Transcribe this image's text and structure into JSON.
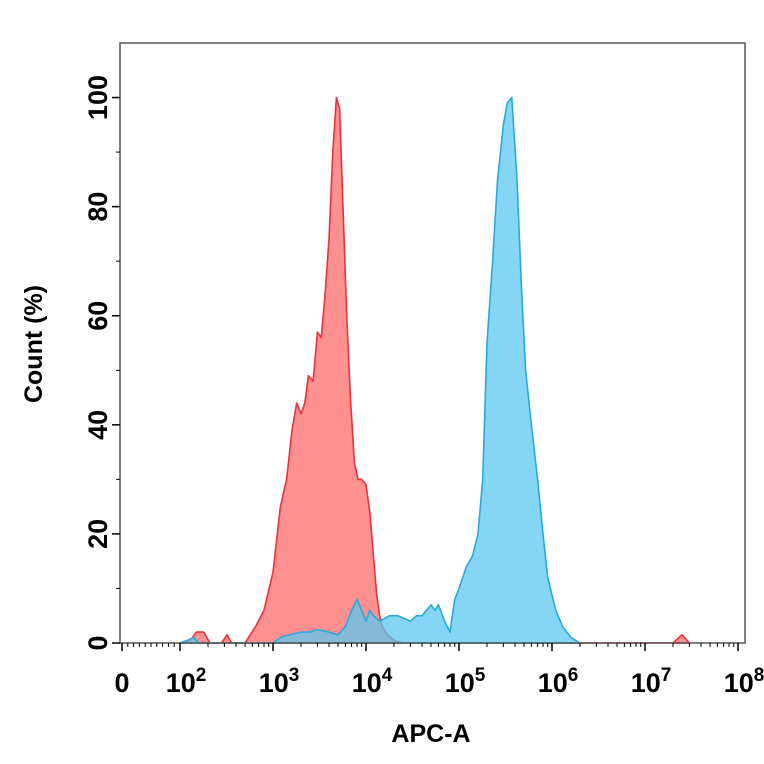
{
  "chart_data": {
    "type": "area",
    "xlabel": "APC-A",
    "ylabel": "Count  (%)",
    "x_scale": "log",
    "xlim": [
      0,
      100000000
    ],
    "ylim": [
      0,
      110
    ],
    "x_ticks": [
      {
        "base": "0",
        "exp": ""
      },
      {
        "base": "10",
        "exp": "2"
      },
      {
        "base": "10",
        "exp": "3"
      },
      {
        "base": "10",
        "exp": "4"
      },
      {
        "base": "10",
        "exp": "5"
      },
      {
        "base": "10",
        "exp": "6"
      },
      {
        "base": "10",
        "exp": "7"
      },
      {
        "base": "10",
        "exp": "8"
      }
    ],
    "y_ticks": [
      "0",
      "20",
      "40",
      "60",
      "80",
      "100"
    ],
    "grid": false,
    "series": [
      {
        "color": "#ff6b6b",
        "stroke": "#e8323c",
        "points": [
          [
            100,
            0
          ],
          [
            130,
            0.5
          ],
          [
            150,
            2
          ],
          [
            180,
            2
          ],
          [
            210,
            0
          ],
          [
            280,
            0
          ],
          [
            320,
            1.5
          ],
          [
            360,
            0
          ],
          [
            500,
            0
          ],
          [
            650,
            3
          ],
          [
            800,
            6
          ],
          [
            1000,
            13
          ],
          [
            1200,
            25
          ],
          [
            1400,
            30
          ],
          [
            1600,
            39
          ],
          [
            1800,
            44
          ],
          [
            2000,
            42
          ],
          [
            2200,
            44
          ],
          [
            2400,
            49
          ],
          [
            2700,
            48
          ],
          [
            3000,
            57
          ],
          [
            3300,
            56
          ],
          [
            3600,
            63
          ],
          [
            4000,
            74
          ],
          [
            4400,
            90
          ],
          [
            4800,
            100
          ],
          [
            5200,
            98
          ],
          [
            5600,
            82
          ],
          [
            6200,
            60
          ],
          [
            6800,
            45
          ],
          [
            7500,
            33
          ],
          [
            8200,
            30
          ],
          [
            9000,
            30
          ],
          [
            10000,
            29
          ],
          [
            11000,
            24
          ],
          [
            12000,
            16
          ],
          [
            13000,
            9
          ],
          [
            14000,
            5
          ],
          [
            15000,
            3
          ],
          [
            17000,
            1.5
          ],
          [
            20000,
            0.5
          ],
          [
            25000,
            0
          ],
          [
            3000000,
            0
          ],
          [
            8000000,
            0
          ],
          [
            20000000,
            0
          ],
          [
            25000000,
            1.5
          ],
          [
            30000000,
            0
          ]
        ]
      },
      {
        "color": "#5bc8f0",
        "stroke": "#2aa8de",
        "points": [
          [
            100,
            0
          ],
          [
            120,
            0.5
          ],
          [
            140,
            1
          ],
          [
            160,
            0
          ],
          [
            1000,
            0
          ],
          [
            1200,
            1
          ],
          [
            1500,
            1.5
          ],
          [
            2000,
            2
          ],
          [
            2500,
            2
          ],
          [
            3000,
            2.5
          ],
          [
            4000,
            2
          ],
          [
            5000,
            1.5
          ],
          [
            6000,
            3
          ],
          [
            7000,
            6
          ],
          [
            8000,
            8
          ],
          [
            9000,
            6
          ],
          [
            10000,
            4
          ],
          [
            11000,
            6
          ],
          [
            12000,
            5
          ],
          [
            14000,
            4
          ],
          [
            18000,
            5
          ],
          [
            22000,
            5
          ],
          [
            30000,
            4
          ],
          [
            35000,
            5
          ],
          [
            40000,
            5
          ],
          [
            50000,
            7
          ],
          [
            55000,
            6
          ],
          [
            60000,
            7
          ],
          [
            70000,
            4
          ],
          [
            80000,
            2
          ],
          [
            90000,
            8
          ],
          [
            100000,
            10
          ],
          [
            120000,
            14
          ],
          [
            140000,
            16
          ],
          [
            160000,
            20
          ],
          [
            180000,
            30
          ],
          [
            200000,
            55
          ],
          [
            230000,
            70
          ],
          [
            260000,
            85
          ],
          [
            300000,
            95
          ],
          [
            330000,
            99
          ],
          [
            370000,
            100
          ],
          [
            420000,
            85
          ],
          [
            470000,
            65
          ],
          [
            520000,
            50
          ],
          [
            600000,
            40
          ],
          [
            700000,
            30
          ],
          [
            800000,
            20
          ],
          [
            900000,
            12
          ],
          [
            1100000,
            6
          ],
          [
            1300000,
            3
          ],
          [
            1600000,
            1
          ],
          [
            2000000,
            0
          ]
        ]
      }
    ]
  }
}
